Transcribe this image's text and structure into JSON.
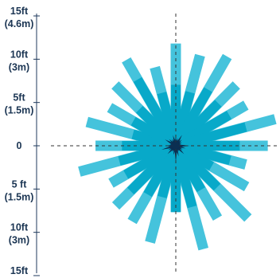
{
  "chart_data": {
    "type": "radial-bar",
    "title": "",
    "ylim": [
      -15,
      15
    ],
    "y_ticks": [
      {
        "value": 15,
        "line1": "15ft",
        "line2": "(4.6m)"
      },
      {
        "value": 10,
        "line1": "10ft",
        "line2": "(3m)"
      },
      {
        "value": 5,
        "line1": "5ft",
        "line2": "(1.5m)"
      },
      {
        "value": 0,
        "line1": "0",
        "line2": ""
      },
      {
        "value": -5,
        "line1": "5 ft",
        "line2": "(1.5m)"
      },
      {
        "value": -10,
        "line1": "10ft",
        "line2": "(3m)"
      },
      {
        "value": -15,
        "line1": "15ft",
        "line2": "(4.6m)"
      }
    ],
    "directions_deg": [
      0,
      15,
      30,
      45,
      60,
      75,
      90,
      105,
      120,
      135,
      150,
      165,
      180,
      195,
      210,
      225,
      240,
      255,
      270,
      285,
      300,
      315,
      330,
      345
    ],
    "series": [
      {
        "values": [
          13.1,
          12.0,
          13.2,
          11.0,
          10.4,
          13.2,
          11.8,
          9.3,
          10.5,
          13.1,
          10.7,
          13.7,
          8.5,
          12.8,
          11.2,
          10.9,
          9.6,
          12.8,
          10.3,
          11.8,
          9.8,
          11.0,
          12.7,
          10.4
        ]
      },
      {
        "values": [
          7.8,
          7.1,
          8.3,
          7.7,
          7.9,
          9.3,
          8.2,
          7.2,
          5.3,
          7.5,
          6.5,
          8.1,
          8.5,
          6.8,
          7.2,
          8.2,
          7.4,
          7.5,
          6.9,
          5.7,
          6.3,
          6.6,
          9.8,
          7.0
        ]
      },
      {
        "values": [
          1.2,
          1.0,
          1.6,
          1.1,
          0.9,
          0.7,
          1.8,
          1.3,
          1.0,
          1.5,
          0.8,
          1.4,
          2.1,
          1.2,
          0.9,
          1.5,
          1.1,
          1.9,
          1.3,
          0.8,
          1.6,
          1.2,
          1.0,
          1.4
        ]
      }
    ],
    "grid": false
  },
  "colors": {
    "outer_bar": "#45c3dc",
    "middle_bar": "#08a9c9",
    "inner_bar": "#0b2f52",
    "axis": "#1f3a5c",
    "crosshair": "#333333",
    "label": "#1b3553"
  }
}
